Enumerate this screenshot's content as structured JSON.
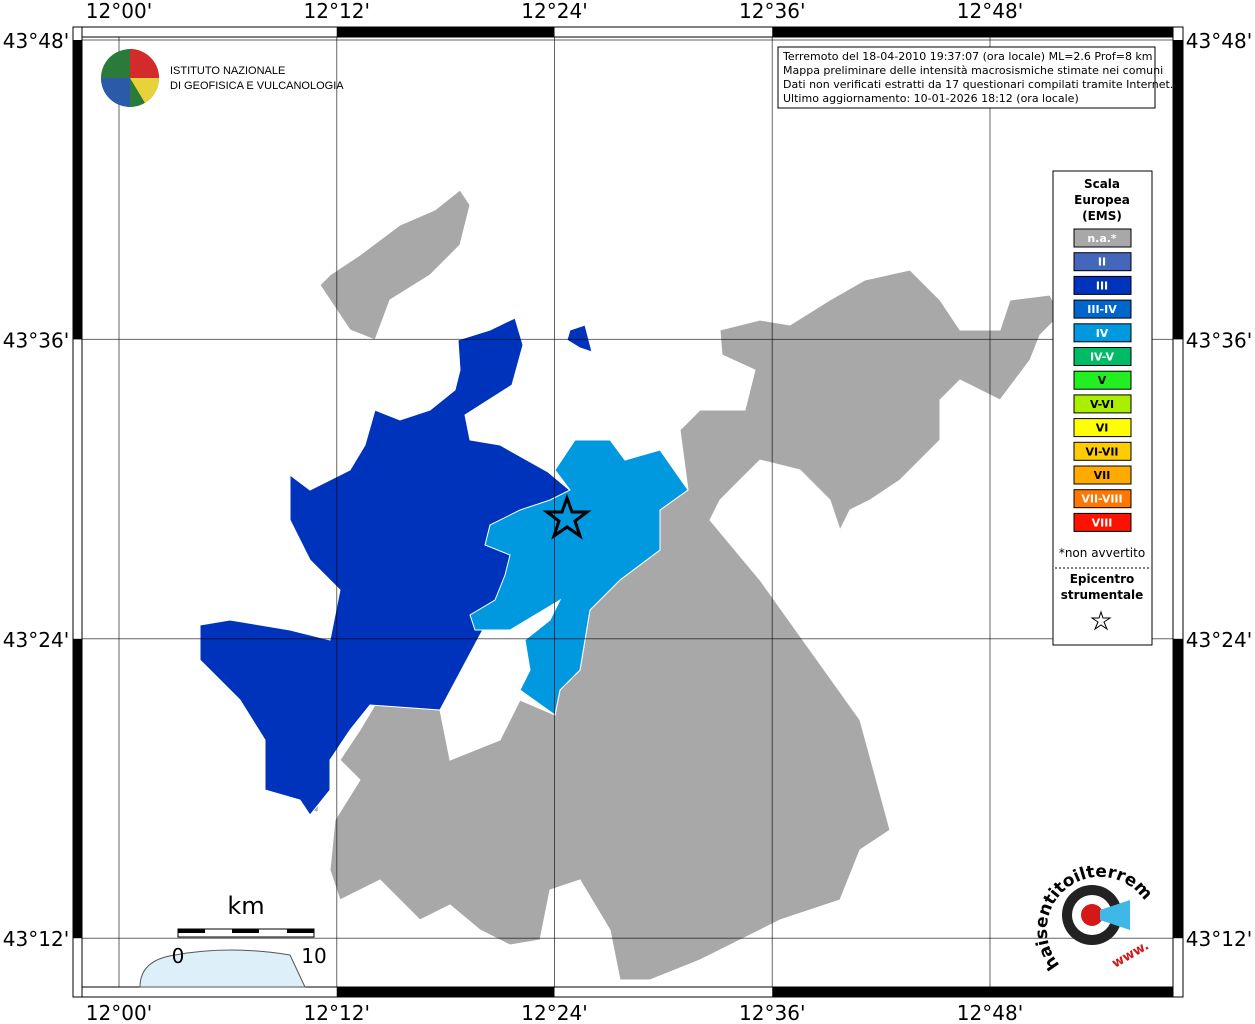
{
  "map": {
    "x_labels": [
      "12°00'",
      "12°12'",
      "12°24'",
      "12°36'",
      "12°48'"
    ],
    "y_labels": [
      "43°48'",
      "43°36'",
      "43°24'",
      "43°12'"
    ],
    "info": [
      "Terremoto del 18-04-2010 19:37:07 (ora locale) ML=2.6 Prof=8 km",
      "Mappa preliminare delle intensità macrosismiche stimate nei comuni",
      "Dati non verificati estratti da 17 questionari compilati tramite Internet.",
      "Ultimo aggiornamento: 10-01-2026 18:12 (ora locale)"
    ],
    "logo": [
      "ISTITUTO NAZIONALE",
      "DI GEOFISICA E VULCANOLOGIA"
    ],
    "legend": {
      "title": [
        "Scala",
        "Europea",
        "(EMS)"
      ],
      "items": [
        {
          "label": "n.a.*",
          "color": "#a8a8a8"
        },
        {
          "label": "II",
          "color": "#4466bb"
        },
        {
          "label": "III",
          "color": "#0033bb"
        },
        {
          "label": "III-IV",
          "color": "#0066cc"
        },
        {
          "label": "IV",
          "color": "#0099e0"
        },
        {
          "label": "IV-V",
          "color": "#00bb66"
        },
        {
          "label": "V",
          "color": "#22ee22"
        },
        {
          "label": "V-VI",
          "color": "#aaee00"
        },
        {
          "label": "VI",
          "color": "#ffff00"
        },
        {
          "label": "VI-VII",
          "color": "#ffcc00"
        },
        {
          "label": "VII",
          "color": "#ffaa00"
        },
        {
          "label": "VII-VIII",
          "color": "#ff7700"
        },
        {
          "label": "VIII",
          "color": "#ff1100"
        }
      ],
      "note": "*non avvertito",
      "epicenter": [
        "Epicentro",
        "strumentale"
      ]
    },
    "scale_bar": {
      "unit": "km",
      "labels": [
        "0",
        "10"
      ]
    },
    "badge": {
      "text": "haisentitoilterremoto.it",
      "www": "www."
    }
  }
}
